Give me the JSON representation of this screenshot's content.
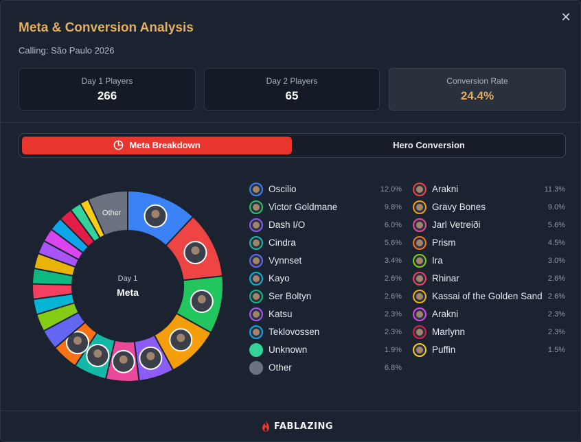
{
  "modal": {
    "title": "Meta & Conversion Analysis",
    "subtitle": "Calling: São Paulo 2026",
    "close_glyph": "✕"
  },
  "stats": [
    {
      "label": "Day 1 Players",
      "value": "266"
    },
    {
      "label": "Day 2 Players",
      "value": "65"
    },
    {
      "label": "Conversion Rate",
      "value": "24.4%"
    }
  ],
  "tabs": [
    {
      "label": "Meta Breakdown",
      "active": true,
      "icon": "pie-chart-icon"
    },
    {
      "label": "Hero Conversion",
      "active": false
    }
  ],
  "donut": {
    "center_line1": "Day 1",
    "center_line2": "Meta",
    "other_label": "Other"
  },
  "chart_data": {
    "type": "pie",
    "slices": [
      {
        "name": "Oscilio",
        "value": 12.0,
        "color": "#3b82f6"
      },
      {
        "name": "Arakni",
        "value": 11.3,
        "color": "#ef4444"
      },
      {
        "name": "Victor Goldmane",
        "value": 9.8,
        "color": "#22c55e"
      },
      {
        "name": "Gravy Bones",
        "value": 9.0,
        "color": "#f59e0b"
      },
      {
        "name": "Dash I/O",
        "value": 6.0,
        "color": "#8b5cf6"
      },
      {
        "name": "Jarl Vetreiði",
        "value": 5.6,
        "color": "#ec4899"
      },
      {
        "name": "Cindra",
        "value": 5.6,
        "color": "#14b8a6"
      },
      {
        "name": "Prism",
        "value": 4.5,
        "color": "#f97316"
      },
      {
        "name": "Vynnset",
        "value": 3.4,
        "color": "#6366f1"
      },
      {
        "name": "Ira",
        "value": 3.0,
        "color": "#84cc16"
      },
      {
        "name": "Kayo",
        "value": 2.6,
        "color": "#06b6d4"
      },
      {
        "name": "Rhinar",
        "value": 2.6,
        "color": "#f43f5e"
      },
      {
        "name": "Ser Boltyn",
        "value": 2.6,
        "color": "#10b981"
      },
      {
        "name": "Kassai of the Golden Sand",
        "value": 2.6,
        "color": "#eab308"
      },
      {
        "name": "Katsu",
        "value": 2.3,
        "color": "#a855f7"
      },
      {
        "name": "Arakni",
        "value": 2.3,
        "color": "#d946ef"
      },
      {
        "name": "Teklovossen",
        "value": 2.3,
        "color": "#0ea5e9"
      },
      {
        "name": "Marlynn",
        "value": 2.3,
        "color": "#e11d48"
      },
      {
        "name": "Unknown",
        "value": 1.9,
        "color": "#34d399"
      },
      {
        "name": "Puffin",
        "value": 1.5,
        "color": "#facc15"
      },
      {
        "name": "Other",
        "value": 6.8,
        "color": "#6b7280"
      }
    ]
  },
  "legend": {
    "left": [
      {
        "name": "Oscilio",
        "pct": "12.0%",
        "ring": "#3b82f6",
        "icon": "hero-portrait-icon"
      },
      {
        "name": "Victor Goldmane",
        "pct": "9.8%",
        "ring": "#22c55e",
        "icon": "hero-portrait-icon"
      },
      {
        "name": "Dash I/O",
        "pct": "6.0%",
        "ring": "#8b5cf6",
        "icon": "hero-portrait-icon"
      },
      {
        "name": "Cindra",
        "pct": "5.6%",
        "ring": "#14b8a6",
        "icon": "hero-portrait-icon"
      },
      {
        "name": "Vynnset",
        "pct": "3.4%",
        "ring": "#6366f1",
        "icon": "hero-portrait-icon"
      },
      {
        "name": "Kayo",
        "pct": "2.6%",
        "ring": "#06b6d4",
        "icon": "hero-portrait-icon"
      },
      {
        "name": "Ser Boltyn",
        "pct": "2.6%",
        "ring": "#10b981",
        "icon": "hero-portrait-icon"
      },
      {
        "name": "Katsu",
        "pct": "2.3%",
        "ring": "#a855f7",
        "icon": "hero-portrait-icon"
      },
      {
        "name": "Teklovossen",
        "pct": "2.3%",
        "ring": "#0ea5e9",
        "icon": "hero-portrait-icon"
      },
      {
        "name": "Unknown",
        "pct": "1.9%",
        "ring": "#34d399",
        "icon": "solid-dot-icon"
      },
      {
        "name": "Other",
        "pct": "6.8%",
        "ring": "#6b7280",
        "icon": "solid-dot-icon"
      }
    ],
    "right": [
      {
        "name": "Arakni",
        "pct": "11.3%",
        "ring": "#ef4444",
        "icon": "hero-portrait-icon"
      },
      {
        "name": "Gravy Bones",
        "pct": "9.0%",
        "ring": "#f59e0b",
        "icon": "hero-portrait-icon"
      },
      {
        "name": "Jarl Vetreiði",
        "pct": "5.6%",
        "ring": "#ec4899",
        "icon": "hero-portrait-icon"
      },
      {
        "name": "Prism",
        "pct": "4.5%",
        "ring": "#f97316",
        "icon": "hero-portrait-icon"
      },
      {
        "name": "Ira",
        "pct": "3.0%",
        "ring": "#84cc16",
        "icon": "hero-portrait-icon"
      },
      {
        "name": "Rhinar",
        "pct": "2.6%",
        "ring": "#f43f5e",
        "icon": "hero-portrait-icon"
      },
      {
        "name": "Kassai of the Golden Sand",
        "pct": "2.6%",
        "ring": "#eab308",
        "icon": "hero-portrait-icon"
      },
      {
        "name": "Arakni",
        "pct": "2.3%",
        "ring": "#d946ef",
        "icon": "hero-portrait-icon"
      },
      {
        "name": "Marlynn",
        "pct": "2.3%",
        "ring": "#e11d48",
        "icon": "hero-portrait-icon"
      },
      {
        "name": "Puffin",
        "pct": "1.5%",
        "ring": "#facc15",
        "icon": "hero-portrait-icon"
      }
    ]
  },
  "footer": {
    "brand": "FABLAZING"
  },
  "colors": {
    "accent": "#e8362f",
    "gold": "#e2ae5f",
    "background": "#1b2331"
  }
}
